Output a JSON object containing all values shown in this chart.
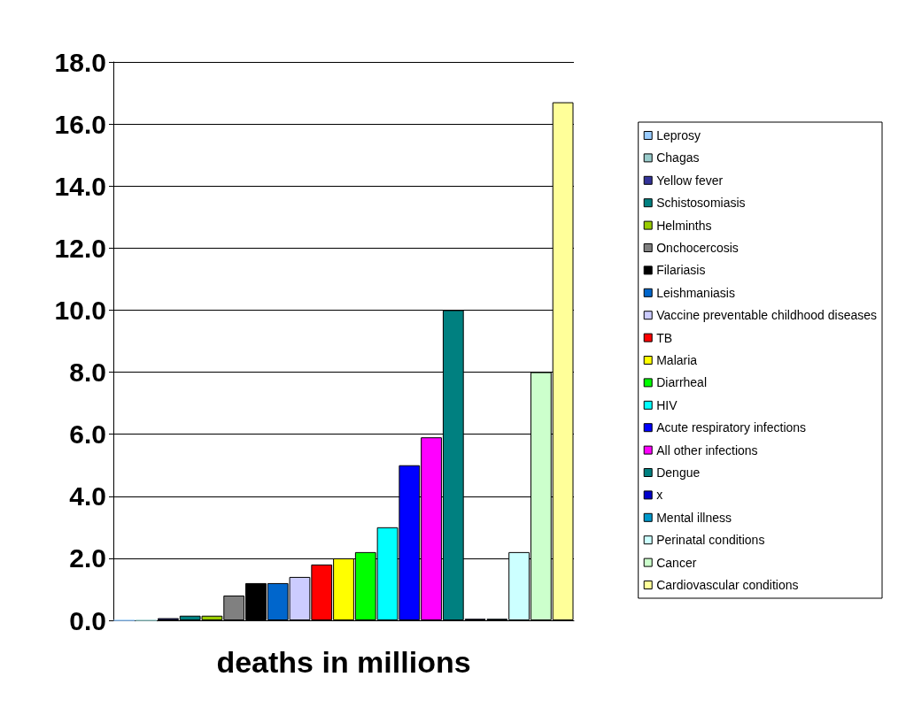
{
  "chart_data": {
    "type": "bar",
    "xlabel": "deaths in millions",
    "categories": [
      null,
      null,
      null,
      null,
      null,
      null,
      null,
      null,
      null,
      null,
      null,
      null,
      null,
      null,
      null,
      null,
      null,
      null,
      null,
      null,
      null
    ],
    "series": [
      {
        "name": "Leprosy",
        "color": "#99ccff",
        "values": [
          0,
          null,
          null,
          null,
          null,
          null,
          null,
          null,
          null,
          null,
          null,
          null,
          null,
          null,
          null,
          null,
          null,
          null,
          null,
          null,
          null
        ]
      },
      {
        "name": "Chagas",
        "color": "#99cccc",
        "values": [
          null,
          0,
          null,
          null,
          null,
          null,
          null,
          null,
          null,
          null,
          null,
          null,
          null,
          null,
          null,
          null,
          null,
          null,
          null,
          null,
          null
        ]
      },
      {
        "name": "Yellow fever",
        "color": "#333399",
        "values": [
          null,
          null,
          0.07,
          null,
          null,
          null,
          null,
          null,
          null,
          null,
          null,
          null,
          null,
          null,
          null,
          null,
          null,
          null,
          null,
          null,
          null
        ]
      },
      {
        "name": "Schistosomiasis",
        "color": "#008080",
        "values": [
          null,
          null,
          null,
          0.15,
          null,
          null,
          null,
          null,
          null,
          null,
          null,
          null,
          null,
          null,
          null,
          null,
          null,
          null,
          null,
          null,
          null
        ]
      },
      {
        "name": "Helminths",
        "color": "#99cc00",
        "values": [
          null,
          null,
          null,
          null,
          0.15,
          null,
          null,
          null,
          null,
          null,
          null,
          null,
          null,
          null,
          null,
          null,
          null,
          null,
          null,
          null,
          null
        ]
      },
      {
        "name": "Onchocercosis",
        "color": "#808080",
        "values": [
          null,
          null,
          null,
          null,
          null,
          0.8,
          null,
          null,
          null,
          null,
          null,
          null,
          null,
          null,
          null,
          null,
          null,
          null,
          null,
          null,
          null
        ]
      },
      {
        "name": "Filariasis",
        "color": "#000000",
        "values": [
          null,
          null,
          null,
          null,
          null,
          null,
          1.2,
          null,
          null,
          null,
          null,
          null,
          null,
          null,
          null,
          null,
          null,
          null,
          null,
          null,
          null
        ]
      },
      {
        "name": "Leishmaniasis",
        "color": "#0066cc",
        "values": [
          null,
          null,
          null,
          null,
          null,
          null,
          null,
          1.2,
          null,
          null,
          null,
          null,
          null,
          null,
          null,
          null,
          null,
          null,
          null,
          null,
          null
        ]
      },
      {
        "name": "Vaccine preventable childhood diseases",
        "color": "#ccccff",
        "values": [
          null,
          null,
          null,
          null,
          null,
          null,
          null,
          null,
          1.4,
          null,
          null,
          null,
          null,
          null,
          null,
          null,
          null,
          null,
          null,
          null,
          null
        ]
      },
      {
        "name": "TB",
        "color": "#ff0000",
        "values": [
          null,
          null,
          null,
          null,
          null,
          null,
          null,
          null,
          null,
          1.8,
          null,
          null,
          null,
          null,
          null,
          null,
          null,
          null,
          null,
          null,
          null
        ]
      },
      {
        "name": "Malaria",
        "color": "#ffff00",
        "values": [
          null,
          null,
          null,
          null,
          null,
          null,
          null,
          null,
          null,
          null,
          2.0,
          null,
          null,
          null,
          null,
          null,
          null,
          null,
          null,
          null,
          null
        ]
      },
      {
        "name": "Diarrheal",
        "color": "#00ff00",
        "values": [
          null,
          null,
          null,
          null,
          null,
          null,
          null,
          null,
          null,
          null,
          null,
          2.2,
          null,
          null,
          null,
          null,
          null,
          null,
          null,
          null,
          null
        ]
      },
      {
        "name": "HIV",
        "color": "#00ffff",
        "values": [
          null,
          null,
          null,
          null,
          null,
          null,
          null,
          null,
          null,
          null,
          null,
          null,
          3.0,
          null,
          null,
          null,
          null,
          null,
          null,
          null,
          null
        ]
      },
      {
        "name": "Acute respiratory infections",
        "color": "#0000ff",
        "values": [
          null,
          null,
          null,
          null,
          null,
          null,
          null,
          null,
          null,
          null,
          null,
          null,
          null,
          5.0,
          null,
          null,
          null,
          null,
          null,
          null,
          null
        ]
      },
      {
        "name": "All other infections",
        "color": "#ff00ff",
        "values": [
          null,
          null,
          null,
          null,
          null,
          null,
          null,
          null,
          null,
          null,
          null,
          null,
          null,
          null,
          5.9,
          null,
          null,
          null,
          null,
          null,
          null
        ]
      },
      {
        "name": "Dengue",
        "color": "#008080",
        "values": [
          null,
          null,
          null,
          null,
          null,
          null,
          null,
          null,
          null,
          null,
          null,
          null,
          null,
          null,
          null,
          10.0,
          null,
          null,
          null,
          null,
          null
        ]
      },
      {
        "name": "x",
        "color": "#0000cc",
        "values": [
          null,
          null,
          null,
          null,
          null,
          null,
          null,
          null,
          null,
          null,
          null,
          null,
          null,
          null,
          null,
          null,
          0.05,
          null,
          null,
          null,
          null
        ]
      },
      {
        "name": "Mental illness",
        "color": "#0099cc",
        "values": [
          null,
          null,
          null,
          null,
          null,
          null,
          null,
          null,
          null,
          null,
          null,
          null,
          null,
          null,
          null,
          null,
          null,
          0.05,
          null,
          null,
          null
        ]
      },
      {
        "name": "Perinatal conditions",
        "color": "#ccffff",
        "values": [
          null,
          null,
          null,
          null,
          null,
          null,
          null,
          null,
          null,
          null,
          null,
          null,
          null,
          null,
          null,
          null,
          null,
          null,
          2.2,
          null,
          null
        ]
      },
      {
        "name": "Cancer",
        "color": "#ccffcc",
        "values": [
          null,
          null,
          null,
          null,
          null,
          null,
          null,
          null,
          null,
          null,
          null,
          null,
          null,
          null,
          null,
          null,
          null,
          null,
          null,
          8.0,
          null
        ]
      },
      {
        "name": "Cardiovascular conditions",
        "color": "#ffff99",
        "values": [
          null,
          null,
          null,
          null,
          null,
          null,
          null,
          null,
          null,
          null,
          null,
          null,
          null,
          null,
          null,
          null,
          null,
          null,
          null,
          null,
          16.7
        ]
      }
    ],
    "ylim": [
      0,
      18
    ],
    "yticks": [
      {
        "value": 0,
        "label": "0.0"
      },
      {
        "value": 2,
        "label": "2.0"
      },
      {
        "value": 4,
        "label": "4.0"
      },
      {
        "value": 6,
        "label": "6.0"
      },
      {
        "value": 8,
        "label": "8.0"
      },
      {
        "value": 10,
        "label": "10.0"
      },
      {
        "value": 12,
        "label": "12.0"
      },
      {
        "value": 14,
        "label": "14.0"
      },
      {
        "value": 16,
        "label": "16.0"
      },
      {
        "value": 18,
        "label": "18.0"
      }
    ],
    "grid": "y",
    "legend": "right"
  }
}
